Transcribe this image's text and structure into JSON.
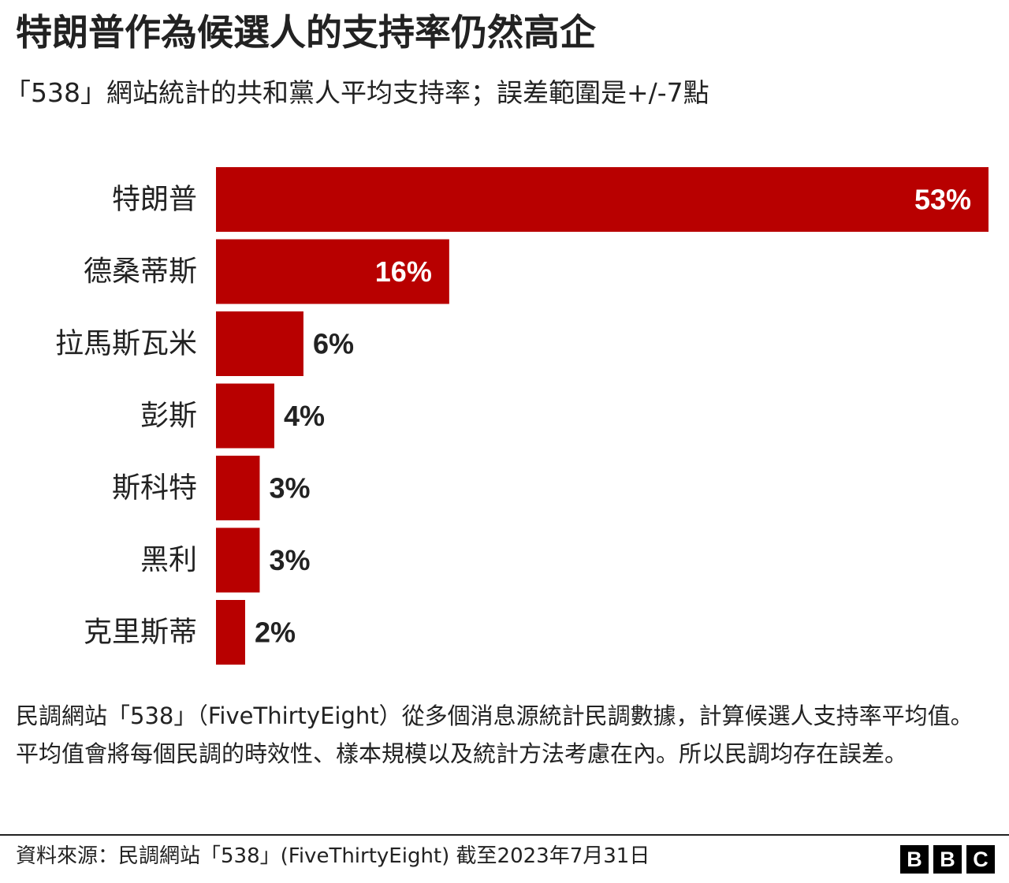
{
  "title": "特朗普作為候選人的支持率仍然高企",
  "subtitle": "「538」網站統計的共和黨人平均支持率；誤差範圍是+/-7點",
  "note": "民調網站「538」（FiveThirtyEight）從多個消息源統計民調數據，計算候選人支持率平均值。平均值會將每個民調的時效性、樣本規模以及統計方法考慮在內。所以民調均存在誤差。",
  "source": "資料來源：民調網站「538」(FiveThirtyEight) 截至2023年7月31日",
  "logo": [
    "B",
    "B",
    "C"
  ],
  "colors": {
    "bar": "#b80000",
    "text": "#222222"
  },
  "chart_data": {
    "type": "bar",
    "orientation": "horizontal",
    "categories": [
      "特朗普",
      "德桑蒂斯",
      "拉馬斯瓦米",
      "彭斯",
      "斯科特",
      "黑利",
      "克里斯蒂"
    ],
    "values": [
      53,
      16,
      6,
      4,
      3,
      3,
      2
    ],
    "data_labels": [
      "53%",
      "16%",
      "6%",
      "4%",
      "3%",
      "3%",
      "2%"
    ],
    "unit": "%",
    "xlim": [
      0,
      53
    ],
    "grid": false,
    "legend": "none"
  }
}
